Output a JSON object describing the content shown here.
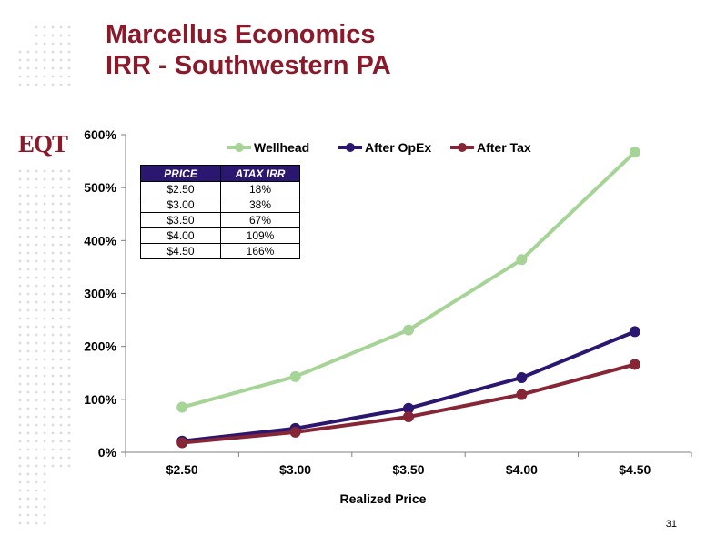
{
  "header": {
    "title_line1": "Marcellus Economics",
    "title_line2": "IRR - Southwestern PA"
  },
  "logo": {
    "text": "EQT",
    "icon": "eqt-logo"
  },
  "colors": {
    "title": "#8a1a2a",
    "wellhead": "#a6d496",
    "after_opex": "#2b1670",
    "after_tax": "#852535",
    "table_header_bg": "#2b1670",
    "decor_dots": "#dcdcdc"
  },
  "table": {
    "headers": [
      "PRICE",
      "ATAX IRR"
    ],
    "rows": [
      [
        "$2.50",
        "18%"
      ],
      [
        "$3.00",
        "38%"
      ],
      [
        "$3.50",
        "67%"
      ],
      [
        "$4.00",
        "109%"
      ],
      [
        "$4.50",
        "166%"
      ]
    ]
  },
  "chart_data": {
    "type": "line",
    "title": "",
    "xlabel": "Realized Price",
    "ylabel": "",
    "categories": [
      "$2.50",
      "$3.00",
      "$3.50",
      "$4.00",
      "$4.50"
    ],
    "yticks": [
      "0%",
      "100%",
      "200%",
      "300%",
      "400%",
      "500%",
      "600%"
    ],
    "ylim": [
      0,
      600
    ],
    "legend_position": "top",
    "grid": false,
    "series": [
      {
        "name": "Wellhead",
        "color": "#a6d496",
        "values": [
          85,
          143,
          231,
          364,
          567
        ]
      },
      {
        "name": "After OpEx",
        "color": "#2b1670",
        "values": [
          21,
          45,
          83,
          141,
          228
        ]
      },
      {
        "name": "After Tax",
        "color": "#852535",
        "values": [
          18,
          38,
          67,
          109,
          166
        ]
      }
    ]
  },
  "footer": {
    "page_number": "31"
  }
}
